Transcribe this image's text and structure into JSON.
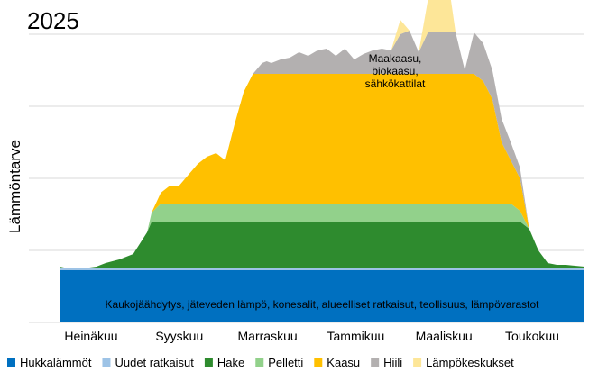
{
  "chart_data": {
    "type": "area",
    "title": "2025",
    "ylabel": "Lämmöntarve",
    "xlabel": "",
    "grid": true,
    "legend_position": "bottom",
    "x_ticks": [
      "Heinäkuu",
      "Syyskuu",
      "Marraskuu",
      "Tammikuu",
      "Maaliskuu",
      "Toukokuu"
    ],
    "x": [
      7.0,
      7.2,
      7.5,
      7.8,
      8.0,
      8.3,
      8.6,
      8.9,
      9.0,
      9.2,
      9.4,
      9.6,
      9.8,
      10.0,
      10.2,
      10.4,
      10.6,
      10.8,
      11.0,
      11.2,
      11.4,
      11.5,
      11.6,
      11.8,
      12.0,
      12.2,
      12.4,
      12.6,
      12.8,
      13.0,
      13.2,
      13.4,
      13.6,
      13.8,
      14.0,
      14.2,
      14.4,
      14.6,
      14.8,
      15.0,
      15.2,
      15.4,
      15.6,
      15.8,
      16.0,
      16.2,
      16.4,
      16.6,
      16.8,
      17.0,
      17.2,
      17.4,
      17.6,
      17.8,
      18.0,
      18.4
    ],
    "baseline_label": "Kaukojäähdytys, jäteveden lämpö, konesalit, alueelliset ratkaisut, teollisuus, lämpövarastot",
    "annotation": "Maakaasu,\nbiokaasu,\nsähkökattilat",
    "colors": {
      "Hukkalämmöt": "#0070c0",
      "Uudet ratkaisut": "#9dc3e6",
      "Hake": "#2e8b2e",
      "Pelletti": "#92d18b",
      "Kaasu": "#ffc000",
      "Hiili": "#b3b0b0",
      "Lämpökeskukset": "#fde698",
      "grid": "#d9d9d9"
    },
    "series": [
      {
        "name": "Hukkalämmöt",
        "values": [
          14.5,
          14.5,
          14.5,
          14.5,
          14.5,
          14.5,
          14.5,
          14.5,
          14.5,
          14.5,
          14.5,
          14.5,
          14.5,
          14.5,
          14.5,
          14.5,
          14.5,
          14.5,
          14.5,
          14.5,
          14.5,
          14.5,
          14.5,
          14.5,
          14.5,
          14.5,
          14.5,
          14.5,
          14.5,
          14.5,
          14.5,
          14.5,
          14.5,
          14.5,
          14.5,
          14.5,
          14.5,
          14.5,
          14.5,
          14.5,
          14.5,
          14.5,
          14.5,
          14.5,
          14.5,
          14.5,
          14.5,
          14.5,
          14.5,
          14.5,
          14.5,
          14.5,
          14.5,
          14.5,
          14.5,
          14.5
        ]
      },
      {
        "name": "Uudet ratkaisut",
        "values": [
          0.5,
          0.5,
          0.5,
          0.5,
          0.5,
          0.5,
          0.5,
          0.5,
          0.5,
          0.5,
          0.5,
          0.5,
          0.5,
          0.5,
          0.5,
          0.5,
          0.5,
          0.5,
          0.5,
          0.5,
          0.5,
          0.5,
          0.5,
          0.5,
          0.5,
          0.5,
          0.5,
          0.5,
          0.5,
          0.5,
          0.5,
          0.5,
          0.5,
          0.5,
          0.5,
          0.5,
          0.5,
          0.5,
          0.5,
          0.5,
          0.5,
          0.5,
          0.5,
          0.5,
          0.5,
          0.5,
          0.5,
          0.5,
          0.5,
          0.5,
          0.5,
          0.5,
          0.5,
          0.5,
          0.5,
          0.5
        ]
      },
      {
        "name": "Hake",
        "values": [
          0.5,
          0,
          0,
          0.5,
          1.5,
          2.5,
          4.0,
          10.0,
          13.0,
          13.0,
          13.0,
          13.0,
          13.0,
          13.0,
          13.0,
          13.0,
          13.0,
          13.0,
          13.0,
          13.0,
          13.0,
          13.0,
          13.0,
          13.0,
          13.0,
          13.0,
          13.0,
          13.0,
          13.0,
          13.0,
          13.0,
          13.0,
          13.0,
          13.0,
          13.0,
          13.0,
          13.0,
          13.0,
          13.0,
          13.0,
          13.0,
          13.0,
          13.0,
          13.0,
          13.0,
          13.0,
          13.0,
          13.0,
          13.0,
          13.0,
          11.0,
          5.0,
          1.5,
          1.0,
          1.0,
          0.5
        ]
      },
      {
        "name": "Pelletti",
        "values": [
          0,
          0,
          0,
          0,
          0,
          0,
          0,
          0,
          2.5,
          5.0,
          5.0,
          5.0,
          5.0,
          5.0,
          5.0,
          5.0,
          5.0,
          5.0,
          5.0,
          5.0,
          5.0,
          5.0,
          5.0,
          5.0,
          5.0,
          5.0,
          5.0,
          5.0,
          5.0,
          5.0,
          5.0,
          5.0,
          5.0,
          5.0,
          5.0,
          5.0,
          5.0,
          5.0,
          5.0,
          5.0,
          5.0,
          5.0,
          5.0,
          5.0,
          5.0,
          5.0,
          5.0,
          5.0,
          5.0,
          3.0,
          0,
          0,
          0,
          0,
          0,
          0
        ]
      },
      {
        "name": "Kaasu",
        "values": [
          0,
          0,
          0,
          0,
          0,
          0,
          0,
          0,
          0,
          3.0,
          5.0,
          5.0,
          8.0,
          11.0,
          13.0,
          14.0,
          12.0,
          22.0,
          31.0,
          36.0,
          36.0,
          36.0,
          36.0,
          36.0,
          36.0,
          36.0,
          36.0,
          36.0,
          36.0,
          36.0,
          36.0,
          36.0,
          36.0,
          36.0,
          36.0,
          36.0,
          36.0,
          36.0,
          36.0,
          36.0,
          36.0,
          36.0,
          36.0,
          36.0,
          36.0,
          34.0,
          29.0,
          17.0,
          12.0,
          9.0,
          0,
          0,
          0,
          0,
          0,
          0
        ]
      },
      {
        "name": "Hiili",
        "values": [
          0,
          0,
          0,
          0,
          0,
          0,
          0,
          0,
          0,
          0,
          0,
          0,
          0,
          0,
          0,
          0,
          0,
          0,
          0,
          0,
          3.0,
          3.5,
          3.0,
          4.0,
          4.5,
          6.0,
          5.0,
          6.5,
          7.0,
          5.0,
          7.0,
          4.0,
          5.5,
          6.5,
          7.0,
          6.5,
          11.0,
          12.0,
          6.0,
          11.5,
          11.5,
          11.5,
          11.5,
          1.0,
          11.5,
          10.5,
          8.0,
          6.5,
          5.0,
          3.0,
          0,
          0,
          0,
          0,
          0,
          0
        ]
      },
      {
        "name": "Lämpökeskukset",
        "values": [
          0,
          0,
          0,
          0,
          0,
          0,
          0,
          0,
          0,
          0,
          0,
          0,
          0,
          0,
          0,
          0,
          0,
          0,
          0,
          0,
          0,
          0,
          0,
          0,
          0,
          0,
          0,
          0,
          0,
          0,
          0,
          0,
          0,
          0,
          0,
          0,
          4.0,
          0,
          0,
          9.0,
          13.0,
          18.0,
          0,
          0,
          0,
          0,
          0,
          0,
          0,
          0,
          0,
          0,
          0,
          0,
          0,
          0
        ]
      }
    ]
  }
}
